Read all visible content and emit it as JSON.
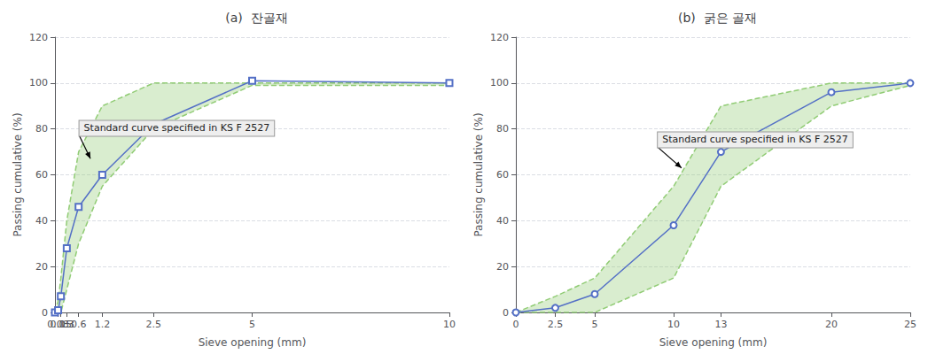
{
  "chart_data": [
    {
      "type": "line",
      "title": "(a)  잔골재",
      "xlabel": "Sieve opening (mm)",
      "ylabel": "Passing cumulative (%)",
      "annotation": "Standard curve specified in KS F 2527",
      "x": [
        0,
        0.08,
        0.15,
        0.3,
        0.6,
        1.2,
        2.5,
        5,
        10
      ],
      "series": [
        {
          "type": "band",
          "line_style": "dashed",
          "upper": [
            0,
            5,
            15,
            40,
            70,
            90,
            100,
            100,
            100
          ],
          "lower": [
            0,
            0,
            0,
            10,
            30,
            55,
            80,
            99,
            99
          ]
        },
        {
          "type": "line",
          "marker": "square",
          "values": [
            0,
            1,
            7,
            28,
            46,
            60,
            82,
            101,
            100
          ]
        }
      ],
      "xlim": [
        0,
        10
      ],
      "xticks": [
        0,
        0.08,
        0.15,
        0.3,
        0.6,
        1.2,
        2.5,
        5,
        10
      ],
      "ylim": [
        0,
        120
      ],
      "yticks": [
        0,
        20,
        40,
        60,
        80,
        100,
        120
      ],
      "grid": true
    },
    {
      "type": "line",
      "title": "(b)  굵은 골재",
      "xlabel": "Sieve opening (mm)",
      "ylabel": "Passing cumulative (%)",
      "annotation": "Standard curve specified in KS F 2527",
      "x": [
        0,
        2.5,
        5,
        10,
        13,
        20,
        25
      ],
      "series": [
        {
          "type": "band",
          "line_style": "dashed",
          "upper": [
            0,
            7,
            15,
            55,
            90,
            100,
            100
          ],
          "lower": [
            0,
            0,
            0,
            15,
            55,
            90,
            99
          ]
        },
        {
          "type": "line",
          "marker": "circle",
          "values": [
            0,
            2,
            8,
            38,
            70,
            96,
            100
          ]
        }
      ],
      "xlim": [
        0,
        25
      ],
      "xticks": [
        0,
        2.5,
        5,
        10,
        13,
        20,
        25
      ],
      "ylim": [
        0,
        120
      ],
      "yticks": [
        0,
        20,
        40,
        60,
        80,
        100,
        120
      ],
      "grid": true
    }
  ]
}
